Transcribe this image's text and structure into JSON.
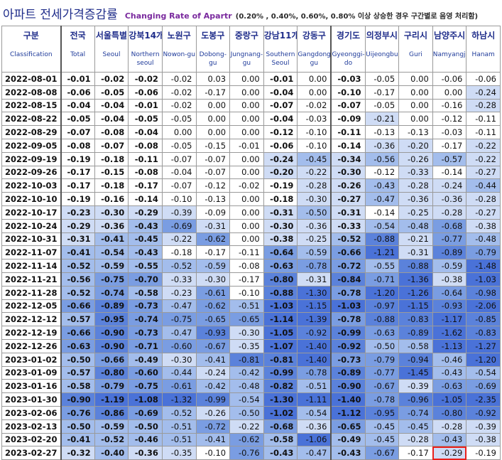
{
  "title": {
    "korean": "아파트 전세가격증감률",
    "english": "Changing Rate of Apartr",
    "note": "(0.20% , 0.40%, 0.60%, 0.80% 이상 상승한 경우 구간별로 음영 처리함)"
  },
  "columns": [
    {
      "ko": "구분",
      "en": "Classification"
    },
    {
      "ko": "전국",
      "en": "Total"
    },
    {
      "ko": "서울특별",
      "en": "Seoul"
    },
    {
      "ko": "강북14개",
      "en": "Northern seoul"
    },
    {
      "ko": "노원구",
      "en": "Nowon-gu"
    },
    {
      "ko": "도봉구",
      "en": "Dobong-gu"
    },
    {
      "ko": "중랑구",
      "en": "Jungnang-gu"
    },
    {
      "ko": "강남11개",
      "en": "Southern Seoul"
    },
    {
      "ko": "강동구",
      "en": "Gangdong-gu"
    },
    {
      "ko": "경기도",
      "en": "Gyeonggi-do"
    },
    {
      "ko": "의정부시",
      "en": "Uijeongbu"
    },
    {
      "ko": "구리시",
      "en": "Guri"
    },
    {
      "ko": "남양주시",
      "en": "Namyangju"
    },
    {
      "ko": "하남시",
      "en": "Hanam"
    }
  ],
  "rows": [
    {
      "date": "2022-08-01",
      "values": [
        "-0.01",
        "-0.02",
        "-0.02",
        "-0.02",
        "0.03",
        "0.00",
        "-0.01",
        "0.00",
        "-0.03",
        "-0.05",
        "0.00",
        "-0.06",
        "-0.06"
      ]
    },
    {
      "date": "2022-08-08",
      "values": [
        "-0.06",
        "-0.05",
        "-0.06",
        "-0.02",
        "-0.17",
        "0.00",
        "-0.04",
        "0.00",
        "-0.10",
        "-0.17",
        "0.00",
        "0.00",
        "-0.24"
      ]
    },
    {
      "date": "2022-08-15",
      "values": [
        "-0.04",
        "-0.04",
        "-0.01",
        "-0.02",
        "0.00",
        "0.00",
        "-0.07",
        "-0.02",
        "-0.07",
        "-0.05",
        "0.00",
        "-0.16",
        "-0.28"
      ]
    },
    {
      "date": "2022-08-22",
      "values": [
        "-0.05",
        "-0.04",
        "-0.05",
        "-0.05",
        "0.00",
        "0.00",
        "-0.04",
        "-0.03",
        "-0.09",
        "-0.21",
        "0.00",
        "-0.12",
        "-0.11"
      ]
    },
    {
      "date": "2022-08-29",
      "values": [
        "-0.07",
        "-0.08",
        "-0.04",
        "0.00",
        "0.00",
        "0.00",
        "-0.12",
        "-0.10",
        "-0.11",
        "-0.13",
        "-0.13",
        "-0.03",
        "-0.11"
      ]
    },
    {
      "date": "2022-09-05",
      "values": [
        "-0.08",
        "-0.07",
        "-0.08",
        "-0.05",
        "-0.15",
        "-0.01",
        "-0.06",
        "-0.10",
        "-0.14",
        "-0.36",
        "-0.20",
        "-0.17",
        "-0.22"
      ]
    },
    {
      "date": "2022-09-19",
      "values": [
        "-0.19",
        "-0.18",
        "-0.11",
        "-0.07",
        "-0.07",
        "0.00",
        "-0.24",
        "-0.45",
        "-0.34",
        "-0.56",
        "-0.26",
        "-0.57",
        "-0.22"
      ]
    },
    {
      "date": "2022-09-26",
      "values": [
        "-0.17",
        "-0.15",
        "-0.08",
        "-0.04",
        "-0.07",
        "0.00",
        "-0.20",
        "-0.22",
        "-0.30",
        "-0.12",
        "-0.33",
        "-0.14",
        "-0.27"
      ]
    },
    {
      "date": "2022-10-03",
      "values": [
        "-0.17",
        "-0.18",
        "-0.17",
        "-0.07",
        "-0.12",
        "-0.02",
        "-0.19",
        "-0.28",
        "-0.26",
        "-0.43",
        "-0.28",
        "-0.24",
        "-0.44"
      ]
    },
    {
      "date": "2022-10-10",
      "values": [
        "-0.19",
        "-0.16",
        "-0.14",
        "-0.10",
        "-0.13",
        "0.00",
        "-0.18",
        "-0.30",
        "-0.27",
        "-0.47",
        "-0.36",
        "-0.36",
        "-0.28"
      ]
    },
    {
      "date": "2022-10-17",
      "values": [
        "-0.23",
        "-0.30",
        "-0.29",
        "-0.39",
        "-0.09",
        "0.00",
        "-0.31",
        "-0.50",
        "-0.31",
        "-0.14",
        "-0.25",
        "-0.28",
        "-0.27"
      ]
    },
    {
      "date": "2022-10-24",
      "values": [
        "-0.29",
        "-0.36",
        "-0.43",
        "-0.69",
        "-0.31",
        "0.00",
        "-0.30",
        "-0.36",
        "-0.33",
        "-0.54",
        "-0.48",
        "-0.68",
        "-0.38"
      ]
    },
    {
      "date": "2022-10-31",
      "values": [
        "-0.31",
        "-0.41",
        "-0.45",
        "-0.22",
        "-0.62",
        "0.00",
        "-0.38",
        "-0.25",
        "-0.52",
        "-0.88",
        "-0.21",
        "-0.77",
        "-0.48"
      ]
    },
    {
      "date": "2022-11-07",
      "values": [
        "-0.41",
        "-0.54",
        "-0.43",
        "-0.18",
        "-0.17",
        "-0.11",
        "-0.64",
        "-0.59",
        "-0.66",
        "-1.21",
        "-0.31",
        "-0.89",
        "-0.79"
      ]
    },
    {
      "date": "2022-11-14",
      "values": [
        "-0.52",
        "-0.59",
        "-0.55",
        "-0.52",
        "-0.59",
        "-0.08",
        "-0.63",
        "-0.78",
        "-0.72",
        "-0.55",
        "-0.88",
        "-0.59",
        "-1.48"
      ]
    },
    {
      "date": "2022-11-21",
      "values": [
        "-0.56",
        "-0.75",
        "-0.70",
        "-0.33",
        "-0.30",
        "-0.17",
        "-0.80",
        "-0.31",
        "-0.84",
        "-0.71",
        "-1.36",
        "-0.38",
        "-1.03"
      ]
    },
    {
      "date": "2022-11-28",
      "values": [
        "-0.52",
        "-0.74",
        "-0.58",
        "-0.23",
        "-0.61",
        "-0.10",
        "-0.88",
        "-1.30",
        "-0.78",
        "-1.20",
        "-1.26",
        "-0.64",
        "-0.98"
      ]
    },
    {
      "date": "2022-12-05",
      "values": [
        "-0.66",
        "-0.89",
        "-0.73",
        "-0.47",
        "-0.62",
        "-0.51",
        "-1.03",
        "-1.15",
        "-1.03",
        "-0.97",
        "-1.15",
        "-0.93",
        "-2.06"
      ]
    },
    {
      "date": "2022-12-12",
      "values": [
        "-0.57",
        "-0.95",
        "-0.74",
        "-0.75",
        "-0.65",
        "-0.65",
        "-1.14",
        "-1.39",
        "-0.78",
        "-0.88",
        "-0.83",
        "-1.17",
        "-0.85"
      ]
    },
    {
      "date": "2022-12-19",
      "values": [
        "-0.66",
        "-0.90",
        "-0.73",
        "-0.47",
        "-0.93",
        "-0.30",
        "-1.05",
        "-0.92",
        "-0.99",
        "-0.63",
        "-0.89",
        "-1.62",
        "-0.83"
      ]
    },
    {
      "date": "2022-12-26",
      "values": [
        "-0.63",
        "-0.90",
        "-0.71",
        "-0.60",
        "-0.67",
        "-0.35",
        "-1.07",
        "-1.40",
        "-0.92",
        "-0.50",
        "-0.58",
        "-1.13",
        "-1.27"
      ]
    },
    {
      "date": "2023-01-02",
      "values": [
        "-0.50",
        "-0.66",
        "-0.49",
        "-0.30",
        "-0.41",
        "-0.81",
        "-0.81",
        "-1.40",
        "-0.73",
        "-0.79",
        "-0.94",
        "-0.46",
        "-1.20"
      ]
    },
    {
      "date": "2023-01-09",
      "values": [
        "-0.57",
        "-0.80",
        "-0.60",
        "-0.44",
        "-0.24",
        "-0.42",
        "-0.99",
        "-0.78",
        "-0.89",
        "-0.77",
        "-1.45",
        "-0.43",
        "-0.54"
      ]
    },
    {
      "date": "2023-01-16",
      "values": [
        "-0.58",
        "-0.79",
        "-0.75",
        "-0.61",
        "-0.42",
        "-0.48",
        "-0.82",
        "-0.51",
        "-0.90",
        "-0.67",
        "-0.39",
        "-0.63",
        "-0.69"
      ]
    },
    {
      "date": "2023-01-30",
      "values": [
        "-0.90",
        "-1.19",
        "-1.08",
        "-1.32",
        "-0.99",
        "-0.54",
        "-1.30",
        "-1.11",
        "-1.40",
        "-0.78",
        "-0.96",
        "-1.05",
        "-2.35"
      ]
    },
    {
      "date": "2023-02-06",
      "values": [
        "-0.76",
        "-0.86",
        "-0.69",
        "-0.52",
        "-0.26",
        "-0.50",
        "-1.02",
        "-0.54",
        "-1.12",
        "-0.95",
        "-0.74",
        "-0.80",
        "-0.92"
      ]
    },
    {
      "date": "2023-02-13",
      "values": [
        "-0.50",
        "-0.59",
        "-0.50",
        "-0.51",
        "-0.72",
        "-0.22",
        "-0.68",
        "-0.36",
        "-0.65",
        "-0.45",
        "-0.45",
        "-0.28",
        "-0.39"
      ]
    },
    {
      "date": "2023-02-20",
      "values": [
        "-0.41",
        "-0.52",
        "-0.46",
        "-0.51",
        "-0.41",
        "-0.62",
        "-0.58",
        "-1.06",
        "-0.49",
        "-0.45",
        "-0.28",
        "-0.43",
        "-0.38"
      ]
    },
    {
      "date": "2023-02-27",
      "values": [
        "-0.32",
        "-0.40",
        "-0.36",
        "-0.35",
        "-0.10",
        "-0.76",
        "-0.43",
        "-0.47",
        "-0.43",
        "-0.67",
        "-0.17",
        "-0.29",
        "-0.19"
      ]
    }
  ],
  "bold_columns": [
    0,
    1,
    2,
    6,
    8
  ],
  "highlight_cell": {
    "row": 28,
    "col": 11
  },
  "shading": {
    "thresholds": [
      0.2,
      0.4,
      0.6,
      0.8,
      1.0
    ],
    "colors": [
      "#ffffff",
      "#cfdcf5",
      "#a3bdec",
      "#7a9de2",
      "#5b82db",
      "#4a72d8"
    ]
  }
}
